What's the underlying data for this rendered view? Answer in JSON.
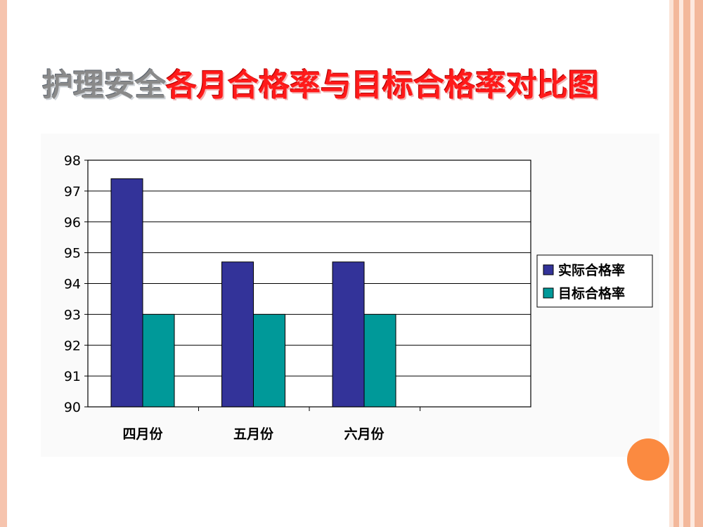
{
  "slide": {
    "title_part1": "护理安全",
    "title_part2": "各月合格率与目标合格率对比图"
  },
  "colors": {
    "actual": "#333399",
    "target": "#009999",
    "accent_dot": "#fb8a40"
  },
  "chart_data": {
    "type": "bar",
    "title": "",
    "xlabel": "",
    "ylabel": "",
    "categories": [
      "四月份",
      "五月份",
      "六月份"
    ],
    "series": [
      {
        "name": "实际合格率",
        "values": [
          97.4,
          94.7,
          94.7
        ],
        "color": "#333399"
      },
      {
        "name": "目标合格率",
        "values": [
          93,
          93,
          93
        ],
        "color": "#009999"
      }
    ],
    "ylim": [
      90,
      98
    ],
    "yticks": [
      98,
      97,
      96,
      95,
      94,
      93,
      92,
      91,
      90
    ],
    "grid": true,
    "legend": "right"
  }
}
